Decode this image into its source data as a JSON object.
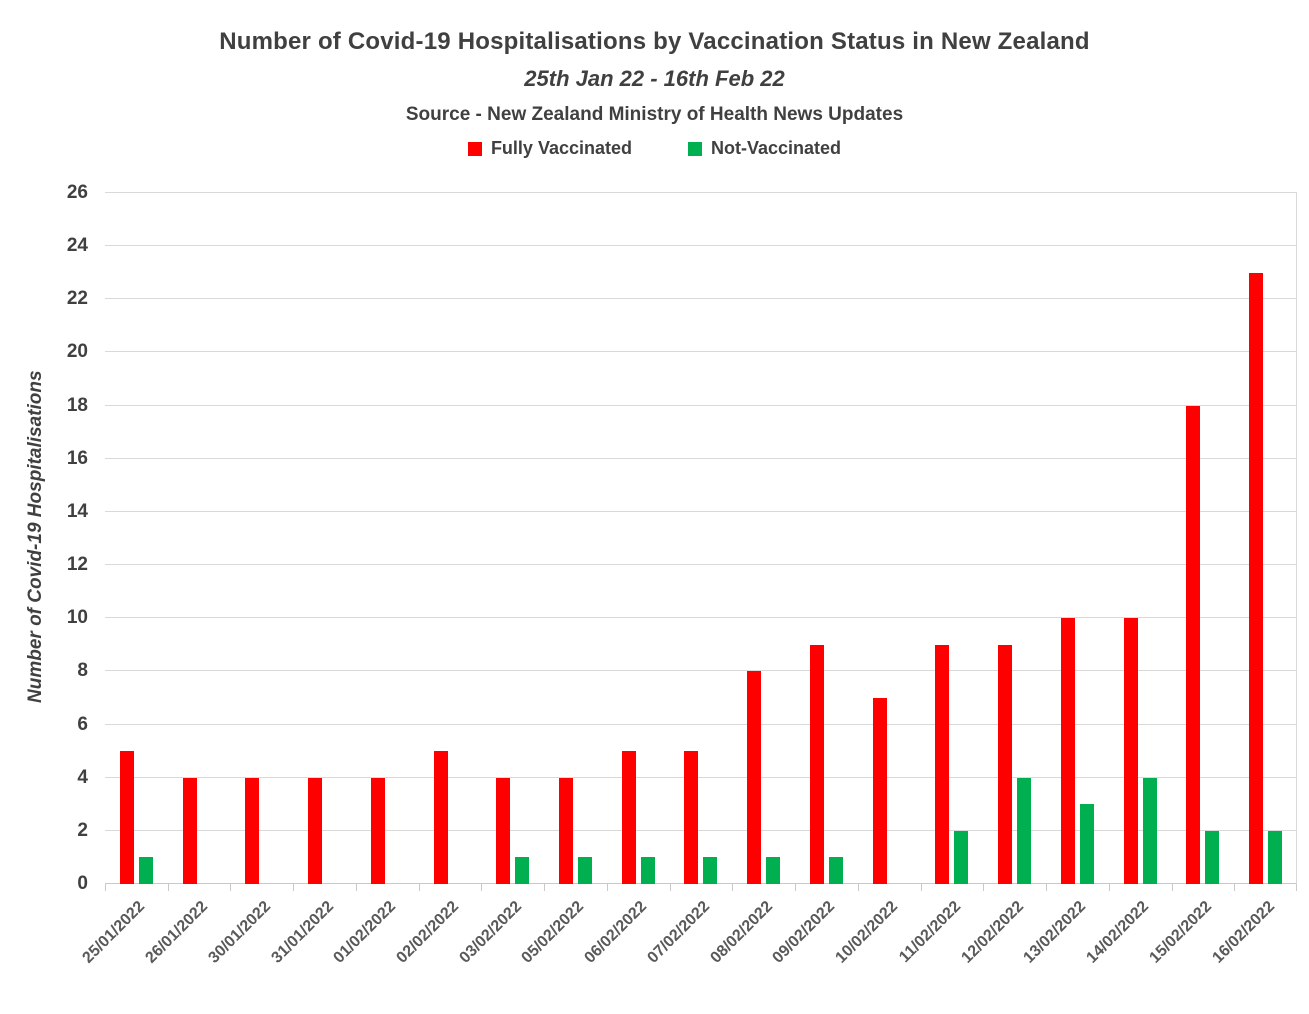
{
  "chart_data": {
    "type": "bar",
    "title": "Number of Covid-19 Hospitalisations by Vaccination Status in New Zealand",
    "subtitle": "25th Jan 22 - 16th Feb 22",
    "source": "Source - New Zealand Ministry of Health News Updates",
    "categories": [
      "25/01/2022",
      "26/01/2022",
      "30/01/2022",
      "31/01/2022",
      "01/02/2022",
      "02/02/2022",
      "03/02/2022",
      "05/02/2022",
      "06/02/2022",
      "07/02/2022",
      "08/02/2022",
      "09/02/2022",
      "10/02/2022",
      "11/02/2022",
      "12/02/2022",
      "13/02/2022",
      "14/02/2022",
      "15/02/2022",
      "16/02/2022"
    ],
    "series": [
      {
        "name": "Fully Vaccinated",
        "color": "#ff0000",
        "values": [
          5,
          4,
          4,
          4,
          4,
          5,
          4,
          4,
          5,
          5,
          8,
          9,
          7,
          9,
          9,
          10,
          10,
          18,
          23
        ]
      },
      {
        "name": "Not-Vaccinated",
        "color": "#00b050",
        "values": [
          1,
          0,
          0,
          0,
          0,
          0,
          1,
          1,
          1,
          1,
          1,
          1,
          0,
          2,
          4,
          3,
          4,
          2,
          2
        ]
      }
    ],
    "xlabel": "",
    "ylabel": "Number of Covid-19 Hospitalisations",
    "ylim": [
      0,
      26
    ],
    "ytick_step": 2,
    "grid": true,
    "legend_position": "top",
    "colors": {
      "gridline": "#d9d9d9",
      "axis_text": "#404040",
      "xlabel_text": "#595959"
    }
  }
}
